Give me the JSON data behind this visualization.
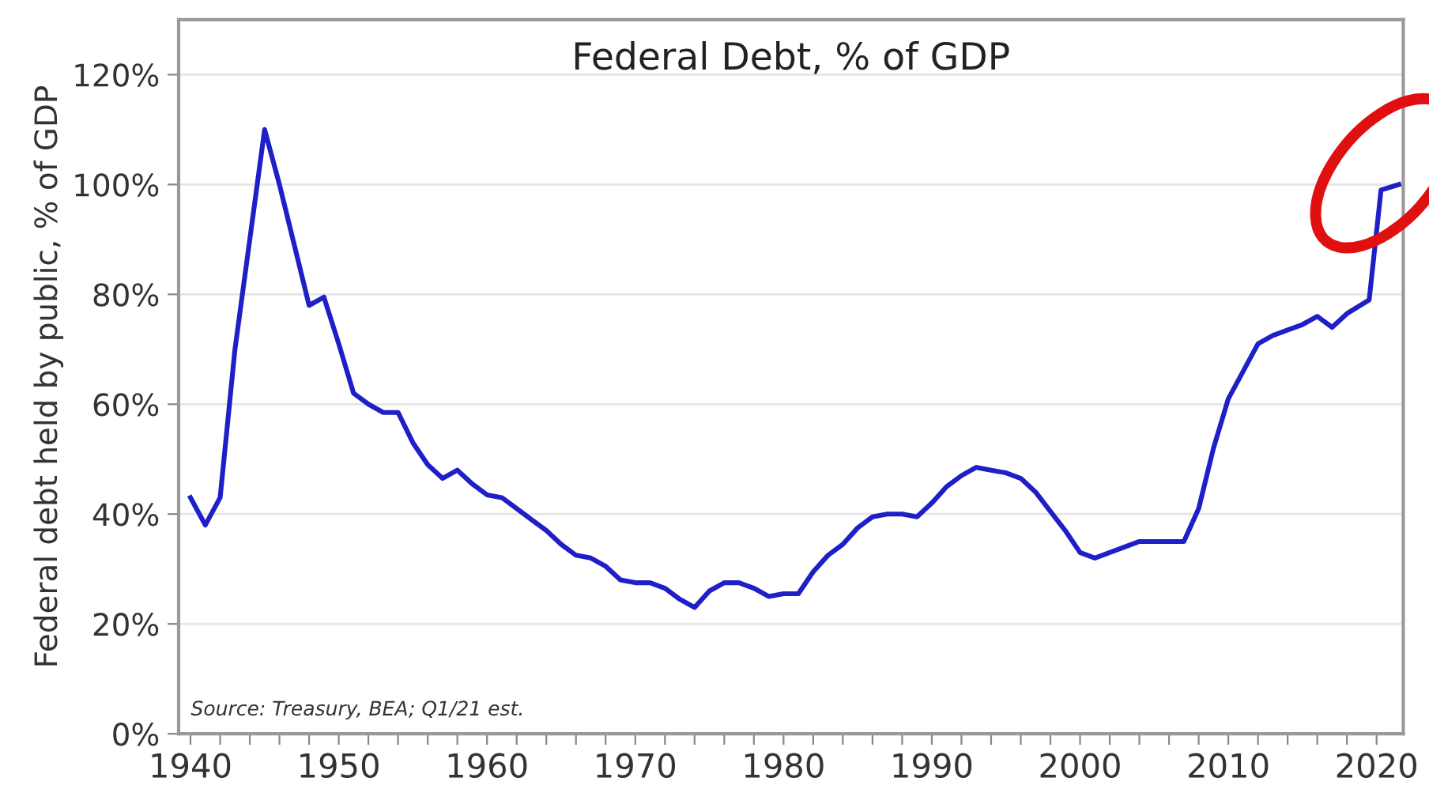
{
  "chart_data": {
    "type": "line",
    "title": "Federal Debt, % of GDP",
    "ylabel": "Federal debt held by public, % of GDP",
    "annotations": [
      "Source: Treasury, BEA; Q1/21 est."
    ],
    "x": [
      1940,
      1941,
      1942,
      1943,
      1944,
      1945,
      1946,
      1947,
      1948,
      1949,
      1950,
      1951,
      1952,
      1953,
      1954,
      1955,
      1956,
      1957,
      1958,
      1959,
      1960,
      1961,
      1962,
      1963,
      1964,
      1965,
      1966,
      1967,
      1968,
      1969,
      1970,
      1971,
      1972,
      1973,
      1974,
      1975,
      1976,
      1977,
      1978,
      1979,
      1980,
      1981,
      1982,
      1983,
      1984,
      1985,
      1986,
      1987,
      1988,
      1989,
      1990,
      1991,
      1992,
      1993,
      1994,
      1995,
      1996,
      1997,
      1998,
      1999,
      2000,
      2001,
      2002,
      2003,
      2004,
      2005,
      2006,
      2007,
      2008,
      2009,
      2010,
      2011,
      2012,
      2013,
      2014,
      2015,
      2016,
      2017,
      2018,
      2019.5,
      2020.3,
      2021.5
    ],
    "series": [
      {
        "color": "#1f1fc8",
        "values": [
          43,
          38,
          43,
          70,
          90,
          110,
          100,
          89,
          78,
          79.5,
          71,
          62,
          60,
          58.5,
          58.5,
          53,
          49,
          46.5,
          48,
          45.5,
          43.5,
          43,
          41,
          39,
          37,
          34.5,
          32.5,
          32,
          30.5,
          28,
          27.5,
          27.5,
          26.5,
          24.5,
          23,
          26,
          27.5,
          27.5,
          26.5,
          25,
          25.5,
          25.5,
          29.5,
          32.5,
          34.5,
          37.5,
          39.5,
          40,
          40,
          39.5,
          42,
          45,
          47,
          48.5,
          48,
          47.5,
          46.5,
          44,
          40.5,
          37,
          33,
          32,
          33,
          34,
          35,
          35,
          35,
          35,
          41,
          52,
          61,
          66,
          71,
          72.5,
          73.5,
          74.5,
          76,
          74,
          76.5,
          79,
          99,
          100
        ]
      }
    ],
    "xlim": [
      1939.2,
      2021.8
    ],
    "ylim": [
      0,
      130
    ],
    "xticks": [
      1940,
      1950,
      1960,
      1970,
      1980,
      1990,
      2000,
      2010,
      2020,
      {
        "value": 1942,
        "label": null
      },
      {
        "value": 1944,
        "label": null
      },
      {
        "value": 1946,
        "label": null
      },
      {
        "value": 1948,
        "label": null
      },
      {
        "value": 1952,
        "label": null
      },
      {
        "value": 1954,
        "label": null
      },
      {
        "value": 1956,
        "label": null
      },
      {
        "value": 1958,
        "label": null
      },
      {
        "value": 1962,
        "label": null
      },
      {
        "value": 1964,
        "label": null
      },
      {
        "value": 1966,
        "label": null
      },
      {
        "value": 1968,
        "label": null
      },
      {
        "value": 1972,
        "label": null
      },
      {
        "value": 1974,
        "label": null
      },
      {
        "value": 1976,
        "label": null
      },
      {
        "value": 1978,
        "label": null
      },
      {
        "value": 1982,
        "label": null
      },
      {
        "value": 1984,
        "label": null
      },
      {
        "value": 1986,
        "label": null
      },
      {
        "value": 1988,
        "label": null
      },
      {
        "value": 1992,
        "label": null
      },
      {
        "value": 1994,
        "label": null
      },
      {
        "value": 1996,
        "label": null
      },
      {
        "value": 1998,
        "label": null
      },
      {
        "value": 2002,
        "label": null
      },
      {
        "value": 2004,
        "label": null
      },
      {
        "value": 2006,
        "label": null
      },
      {
        "value": 2008,
        "label": null
      },
      {
        "value": 2012,
        "label": null
      },
      {
        "value": 2014,
        "label": null
      },
      {
        "value": 2016,
        "label": null
      },
      {
        "value": 2018,
        "label": null
      }
    ],
    "yticks": [
      {
        "value": 0,
        "label": "0%"
      },
      {
        "value": 20,
        "label": "20%"
      },
      {
        "value": 40,
        "label": "40%"
      },
      {
        "value": 60,
        "label": "60%"
      },
      {
        "value": 80,
        "label": "80%"
      },
      {
        "value": 100,
        "label": "100%"
      },
      {
        "value": 120,
        "label": "120%"
      }
    ],
    "grid": "y",
    "line_style": "solid",
    "marker": "none"
  }
}
